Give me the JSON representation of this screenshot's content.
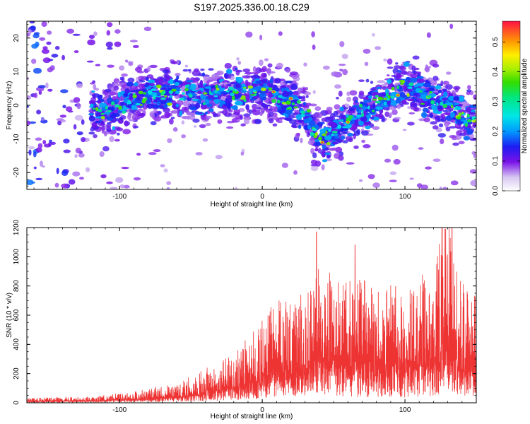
{
  "title": "S197.2025.336.00.18.C29",
  "chart_data": [
    {
      "type": "heatmap",
      "name": "spectrogram",
      "xlabel": "Height of straight line (km)",
      "ylabel": "Frequency (Hz)",
      "xlim": [
        -165,
        150
      ],
      "ylim": [
        -25,
        25
      ],
      "x_ticks": [
        -100,
        0,
        100
      ],
      "x_tick_labels": [
        "-100",
        "0",
        "100"
      ],
      "y_ticks": [
        -20,
        -10,
        0,
        10,
        20
      ],
      "y_tick_labels": [
        "-20",
        "-10",
        "0",
        "10",
        "20"
      ],
      "colorbar": {
        "label": "Normalized spectral amplitude",
        "range": [
          0,
          0.57
        ],
        "ticks": [
          0.0,
          0.1,
          0.2,
          0.3,
          0.4,
          0.5
        ],
        "tick_labels": [
          "0.0",
          "0.1",
          "0.2",
          "0.3",
          "0.4",
          "0.5"
        ]
      },
      "ridge": {
        "x": [
          -115,
          -100,
          -80,
          -60,
          -40,
          -20,
          0,
          20,
          30,
          40,
          50,
          60,
          70,
          80,
          90,
          100,
          110,
          120,
          130,
          140,
          150
        ],
        "y": [
          -2,
          0,
          3,
          4,
          3,
          4,
          4,
          1,
          -2,
          -11,
          -8,
          -5,
          -2,
          1,
          4,
          6,
          4,
          1,
          0,
          -3,
          -5
        ]
      },
      "peak_amplitude": 0.57,
      "grid": false
    },
    {
      "type": "line",
      "name": "snr",
      "xlabel": "Height of straight line (km)",
      "ylabel": "SNR (10 * v/v)",
      "xlim": [
        -165,
        150
      ],
      "ylim": [
        0,
        1200
      ],
      "x_ticks": [
        -100,
        0,
        100
      ],
      "x_tick_labels": [
        "-100",
        "0",
        "100"
      ],
      "y_ticks": [
        0,
        200,
        400,
        600,
        800,
        1000,
        1200
      ],
      "y_tick_labels": [
        "0",
        "200",
        "400",
        "600",
        "800",
        "1000",
        "1200"
      ],
      "color": "#ee3333",
      "envelope": {
        "x": [
          -165,
          -120,
          -100,
          -80,
          -60,
          -40,
          -20,
          -10,
          0,
          10,
          20,
          30,
          40,
          50,
          60,
          70,
          80,
          90,
          100,
          110,
          120,
          130,
          140,
          150
        ],
        "y": [
          30,
          40,
          60,
          90,
          120,
          220,
          300,
          420,
          520,
          650,
          620,
          700,
          900,
          820,
          760,
          780,
          700,
          740,
          720,
          760,
          950,
          1150,
          750,
          700
        ]
      },
      "peaks": [
        {
          "x": 38,
          "y": 1170
        },
        {
          "x": 65,
          "y": 1080
        },
        {
          "x": 126,
          "y": 1200
        },
        {
          "x": 133,
          "y": 1200
        }
      ],
      "grid": false
    }
  ]
}
